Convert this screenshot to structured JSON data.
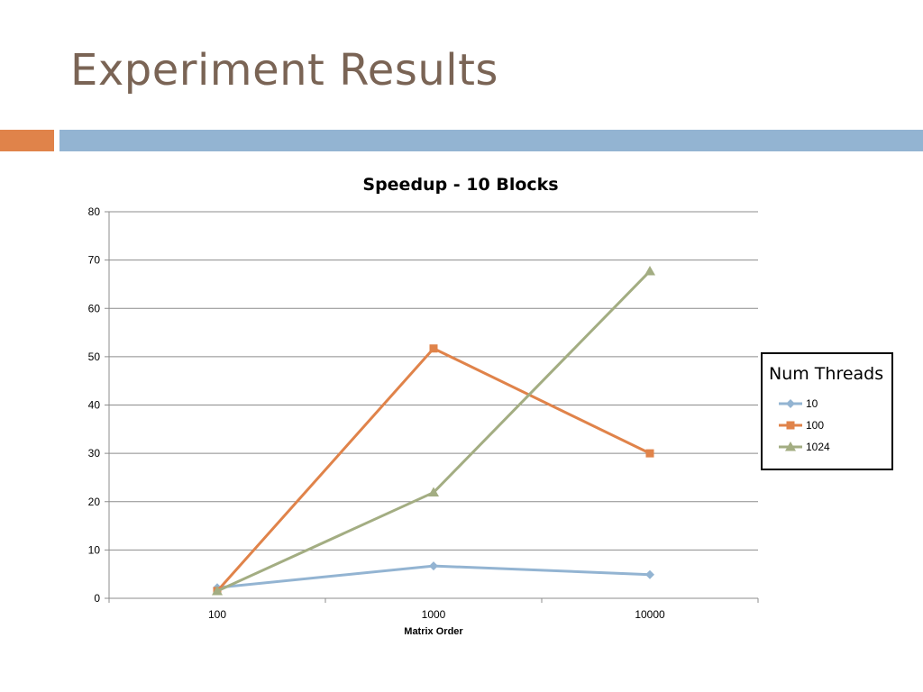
{
  "slide": {
    "title": "Experiment Results",
    "accent_colors": {
      "orange": "#e0834a",
      "blue": "#93b4d2",
      "title": "#7a6455"
    }
  },
  "chart_data": {
    "type": "line",
    "title": "Speedup - 10 Blocks",
    "xlabel": "Matrix Order",
    "ylabel": "",
    "categories": [
      "100",
      "1000",
      "10000"
    ],
    "ylim": [
      0,
      80
    ],
    "yticks": [
      0,
      10,
      20,
      30,
      40,
      50,
      60,
      70,
      80
    ],
    "grid": true,
    "legend": {
      "title": "Num Threads",
      "placement": "right"
    },
    "series": [
      {
        "name": "10",
        "values": [
          2.2,
          6.7,
          4.9
        ],
        "color": "#93b4d2",
        "marker": "diamond"
      },
      {
        "name": "100",
        "values": [
          1.5,
          51.7,
          30.0
        ],
        "color": "#e0834a",
        "marker": "square"
      },
      {
        "name": "1024",
        "values": [
          1.5,
          21.9,
          67.7
        ],
        "color": "#a3ad82",
        "marker": "triangle"
      }
    ]
  }
}
